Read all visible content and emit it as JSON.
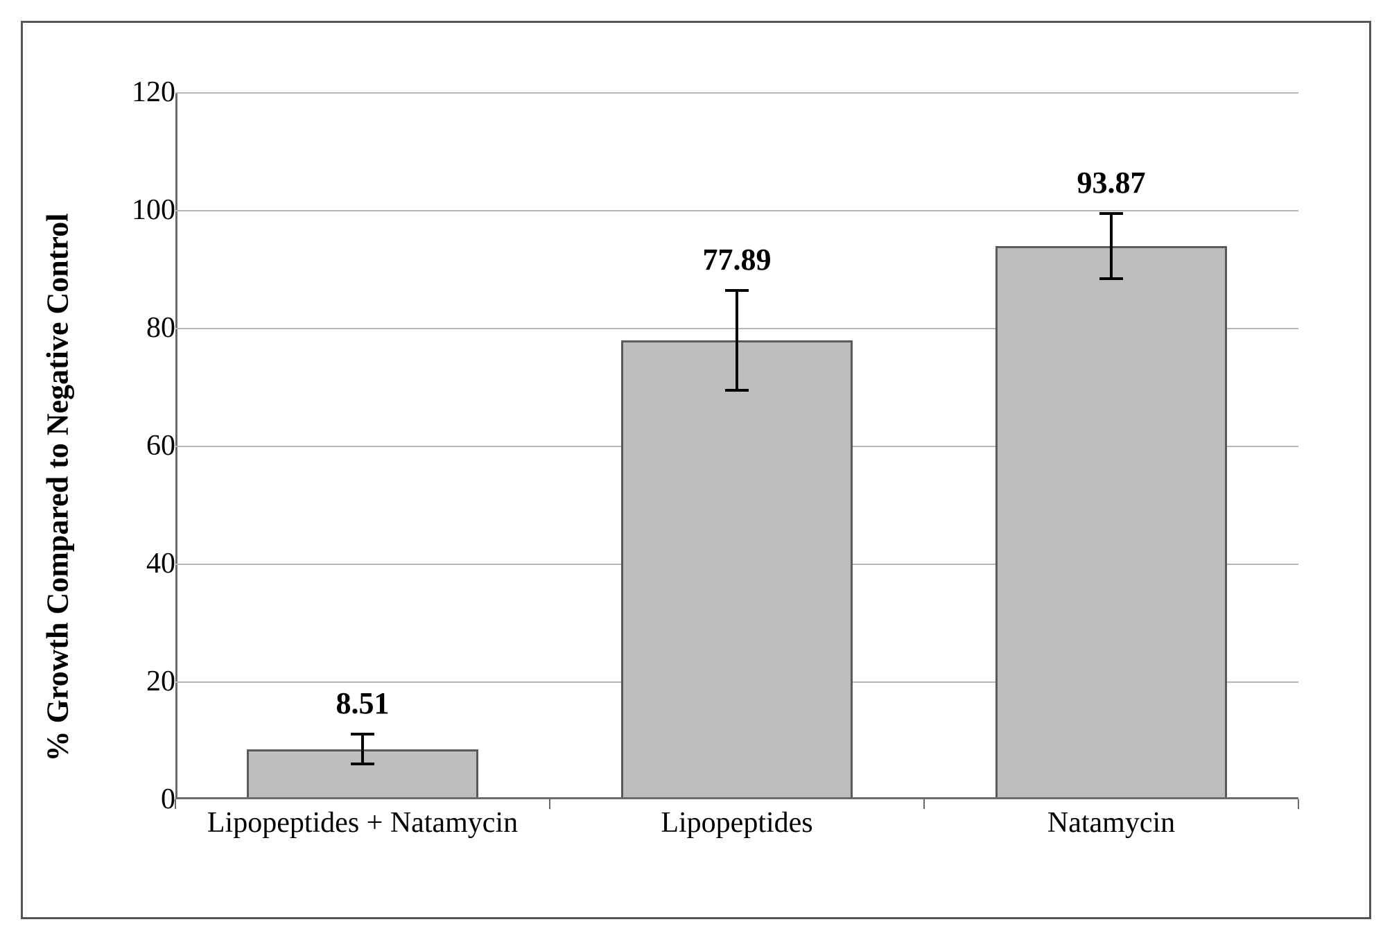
{
  "chart": {
    "type": "bar",
    "ylabel": "% Growth Compared to Negative Control",
    "ylabel_fontsize": 44,
    "ylabel_fontweight": "bold",
    "ylim": [
      0,
      120
    ],
    "ytick_step": 20,
    "yticks": [
      0,
      20,
      40,
      60,
      80,
      100,
      120
    ],
    "tick_fontsize": 42,
    "background_color": "#ffffff",
    "grid_color": "#b7b7b7",
    "axis_color": "#6a6a6a",
    "border_color": "#555555",
    "categories": [
      "Lipopeptides  + Natamycin",
      "Lipopeptides",
      "Natamycin"
    ],
    "values": [
      8.51,
      77.89,
      93.87
    ],
    "value_labels": [
      "8.51",
      "77.89",
      "93.87"
    ],
    "errors": [
      2.5,
      8.5,
      5.5
    ],
    "bar_color": "#bdbdbd",
    "bar_border_color": "#5a5a5a",
    "bar_border_width": 3,
    "bar_width_ratio": 0.62,
    "value_label_fontsize": 44,
    "value_label_fontweight": "bold",
    "error_cap_width": 34,
    "font_family": "Times New Roman"
  }
}
